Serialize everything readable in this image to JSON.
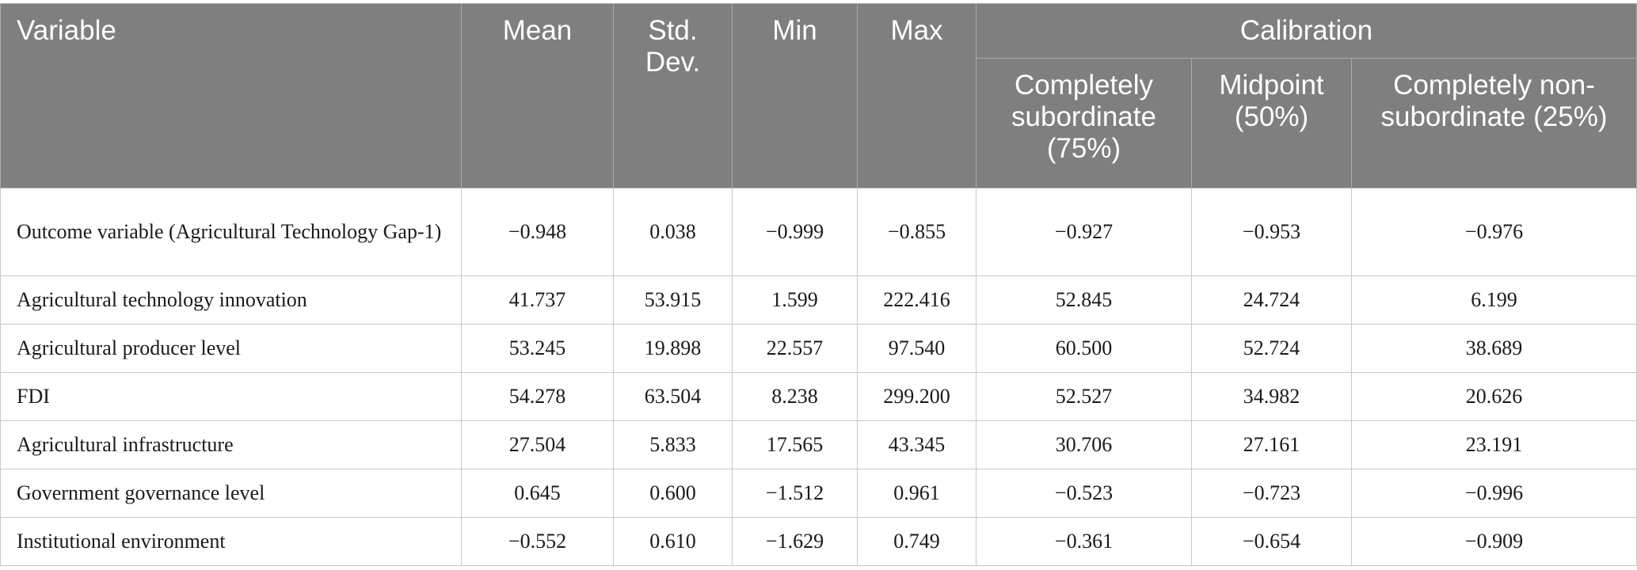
{
  "header": {
    "variable": "Variable",
    "mean": "Mean",
    "std_dev": "Std. Dev.",
    "min": "Min",
    "max": "Max",
    "calibration": "Calibration",
    "completely_subordinate": "Completely subordinate (75%)",
    "midpoint": "Midpoint (50%)",
    "completely_non_subordinate": "Completely non-subordinate (25%)"
  },
  "rows": [
    {
      "variable": "Outcome variable (Agricultural Technology Gap-1)",
      "mean": "−0.948",
      "std_dev": "0.038",
      "min": "−0.999",
      "max": "−0.855",
      "cs": "−0.927",
      "mid": "−0.953",
      "cns": "−0.976"
    },
    {
      "variable": "Agricultural technology innovation",
      "mean": "41.737",
      "std_dev": "53.915",
      "min": "1.599",
      "max": "222.416",
      "cs": "52.845",
      "mid": "24.724",
      "cns": "6.199"
    },
    {
      "variable": "Agricultural producer level",
      "mean": "53.245",
      "std_dev": "19.898",
      "min": "22.557",
      "max": "97.540",
      "cs": "60.500",
      "mid": "52.724",
      "cns": "38.689"
    },
    {
      "variable": "FDI",
      "mean": "54.278",
      "std_dev": "63.504",
      "min": "8.238",
      "max": "299.200",
      "cs": "52.527",
      "mid": "34.982",
      "cns": "20.626"
    },
    {
      "variable": "Agricultural infrastructure",
      "mean": "27.504",
      "std_dev": "5.833",
      "min": "17.565",
      "max": "43.345",
      "cs": "30.706",
      "mid": "27.161",
      "cns": "23.191"
    },
    {
      "variable": "Government governance level",
      "mean": "0.645",
      "std_dev": "0.600",
      "min": "−1.512",
      "max": "0.961",
      "cs": "−0.523",
      "mid": "−0.723",
      "cns": "−0.996"
    },
    {
      "variable": "Institutional environment",
      "mean": "−0.552",
      "std_dev": "0.610",
      "min": "−1.629",
      "max": "0.749",
      "cs": "−0.361",
      "mid": "−0.654",
      "cns": "−0.909"
    }
  ]
}
